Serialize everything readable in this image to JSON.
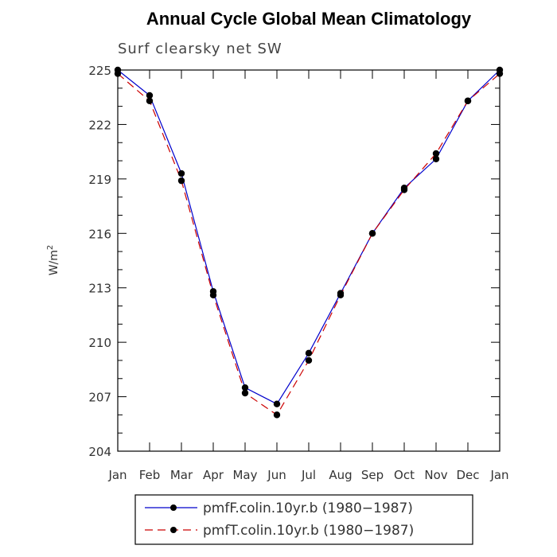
{
  "chart_data": {
    "type": "line",
    "title": "Annual Cycle Global Mean Climatology",
    "subtitle": "Surf clearsky net SW",
    "ylabel": "W/m",
    "ylabel_sup": "2",
    "xlabel": "",
    "categories": [
      "Jan",
      "Feb",
      "Mar",
      "Apr",
      "May",
      "Jun",
      "Jul",
      "Aug",
      "Sep",
      "Oct",
      "Nov",
      "Dec",
      "Jan"
    ],
    "ylim": [
      204,
      225
    ],
    "yticks": [
      204,
      207,
      210,
      213,
      216,
      219,
      222,
      225
    ],
    "grid": false,
    "legend_position": "bottom",
    "series": [
      {
        "name": "pmfF.colin.10yr.b (1980−1987)",
        "color": "#0000cc",
        "line_style": "solid",
        "marker": "filled-circle",
        "values": [
          225.0,
          223.6,
          219.3,
          212.8,
          207.5,
          206.6,
          209.4,
          212.7,
          216.0,
          218.5,
          220.1,
          223.3,
          225.0
        ]
      },
      {
        "name": "pmfT.colin.10yr.b (1980−1987)",
        "color": "#cc0000",
        "line_style": "dashed",
        "marker": "filled-circle",
        "values": [
          224.8,
          223.3,
          218.9,
          212.6,
          207.2,
          206.0,
          209.0,
          212.6,
          216.0,
          218.4,
          220.4,
          223.3,
          224.8
        ]
      }
    ]
  }
}
